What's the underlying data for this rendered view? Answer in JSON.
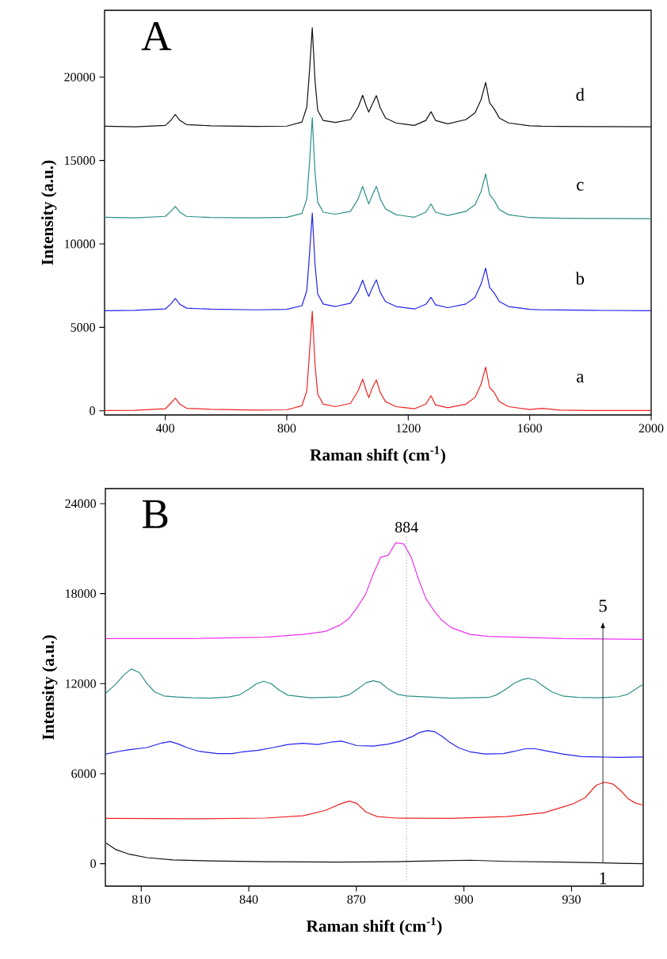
{
  "chart_data": [
    {
      "type": "line",
      "title": "A",
      "xlabel": "Raman shift (cm$^{-1}$)",
      "ylabel": "Intensity (a.u.)",
      "xlim": [
        200,
        2000
      ],
      "ylim": [
        -250,
        24000
      ],
      "xticks": [
        400,
        800,
        1200,
        1600,
        2000
      ],
      "yticks": [
        0,
        5000,
        10000,
        15000,
        20000
      ],
      "x": [
        200,
        300,
        400,
        418,
        433,
        448,
        470,
        550,
        700,
        800,
        850,
        866,
        875,
        884,
        893,
        902,
        920,
        960,
        1010,
        1035,
        1050,
        1062,
        1070,
        1080,
        1095,
        1108,
        1125,
        1160,
        1220,
        1258,
        1275,
        1290,
        1330,
        1390,
        1420,
        1440,
        1455,
        1468,
        1482,
        1500,
        1530,
        1600,
        1640,
        1700,
        1800,
        2000
      ],
      "series": [
        {
          "name": "a",
          "color": "#ee2222",
          "values": [
            20,
            30,
            120,
            450,
            750,
            400,
            150,
            90,
            40,
            60,
            300,
            1200,
            3500,
            5980,
            2800,
            1000,
            400,
            250,
            450,
            1200,
            1900,
            1200,
            790,
            1300,
            1850,
            1100,
            550,
            250,
            120,
            400,
            900,
            350,
            180,
            400,
            800,
            1600,
            2620,
            1400,
            1130,
            550,
            250,
            80,
            150,
            40,
            20,
            20
          ]
        },
        {
          "name": "b",
          "color": "#2222ee",
          "values": [
            6000,
            6020,
            6100,
            6400,
            6730,
            6380,
            6150,
            6090,
            6050,
            6080,
            6300,
            7200,
            9400,
            11850,
            8800,
            7000,
            6400,
            6250,
            6450,
            7150,
            7830,
            7200,
            6860,
            7300,
            7850,
            7100,
            6550,
            6250,
            6100,
            6380,
            6800,
            6350,
            6180,
            6400,
            6800,
            7600,
            8550,
            7400,
            7090,
            6550,
            6250,
            6080,
            6050,
            6040,
            6020,
            6000
          ]
        },
        {
          "name": "c",
          "color": "#2a8f86",
          "values": [
            11600,
            11560,
            11650,
            11950,
            12250,
            11900,
            11650,
            11580,
            11560,
            11600,
            11820,
            12700,
            14900,
            17560,
            14300,
            12500,
            11900,
            11780,
            11950,
            12700,
            13450,
            12800,
            12400,
            12850,
            13450,
            12700,
            12100,
            11750,
            11600,
            11900,
            12400,
            11900,
            11700,
            11950,
            12350,
            13150,
            14200,
            12950,
            12640,
            12050,
            11750,
            11580,
            11560,
            11540,
            11530,
            11510
          ]
        },
        {
          "name": "d",
          "color": "#111111",
          "values": [
            17050,
            17020,
            17100,
            17400,
            17760,
            17400,
            17150,
            17080,
            17040,
            17060,
            17300,
            18200,
            20400,
            22950,
            19800,
            18000,
            17400,
            17280,
            17450,
            18200,
            18910,
            18250,
            17900,
            18300,
            18890,
            18150,
            17550,
            17250,
            17100,
            17400,
            17920,
            17400,
            17200,
            17450,
            17850,
            18650,
            19680,
            18450,
            18120,
            17550,
            17250,
            17080,
            17050,
            17040,
            17030,
            17020
          ]
        }
      ]
    },
    {
      "type": "line",
      "title": "B",
      "xlabel": "Raman shift (cm$^{-1}$)",
      "ylabel": "Intensity (a.u.)",
      "xlim": [
        800,
        950
      ],
      "ylim": [
        -1500,
        25000
      ],
      "xticks": [
        810,
        840,
        870,
        900,
        930
      ],
      "yticks": [
        0,
        6000,
        12000,
        18000,
        24000
      ],
      "ref_lines": [
        {
          "axis": "x",
          "value": 884,
          "label": "884",
          "color": "#808080",
          "line_style": "dotted"
        }
      ],
      "annotations": [
        "1",
        "5"
      ],
      "series": [
        {
          "color": "#111111",
          "x": [
            800.2,
            802.8,
            806.4,
            811.6,
            818.8,
            829.2,
            844.7,
            865.4,
            881,
            891.3,
            901.7,
            912,
            927.5,
            943.1,
            950
          ],
          "values": [
            1380,
            950,
            650,
            400,
            250,
            180,
            130,
            100,
            130,
            180,
            230,
            150,
            100,
            30,
            0
          ]
        },
        {
          "color": "#ee2222",
          "x": [
            800.2,
            824,
            844.7,
            855.1,
            861.3,
            865.4,
            868,
            870.1,
            872.7,
            875.8,
            881,
            896.5,
            912,
            922.3,
            927.5,
            930.6,
            933.8,
            936.9,
            939.2,
            941.6,
            943.6,
            945.7,
            947.7,
            950
          ],
          "values": [
            3020,
            2990,
            3040,
            3190,
            3540,
            3970,
            4170,
            4020,
            3440,
            3140,
            3040,
            3020,
            3140,
            3390,
            3770,
            4000,
            4400,
            5230,
            5430,
            5300,
            4900,
            4350,
            4050,
            3900
          ]
        },
        {
          "color": "#2222ee",
          "x": [
            800.2,
            803.3,
            806.4,
            811.6,
            815.7,
            818.1,
            820.4,
            823,
            826.1,
            831.3,
            835.4,
            838.5,
            842.7,
            846.8,
            850.9,
            855.1,
            859.2,
            863.4,
            865.9,
            868.5,
            870.1,
            874.7,
            878.9,
            882,
            885.6,
            887.7,
            889.8,
            891.8,
            893.9,
            896,
            898.6,
            901.7,
            905.8,
            911,
            914.1,
            917.2,
            919.8,
            923.4,
            927.5,
            932.7,
            937.9,
            943.1,
            950
          ],
          "values": [
            7310,
            7460,
            7590,
            7740,
            8040,
            8140,
            7970,
            7710,
            7490,
            7340,
            7340,
            7460,
            7560,
            7740,
            7940,
            8020,
            7940,
            8120,
            8170,
            7990,
            7870,
            7840,
            7970,
            8140,
            8470,
            8750,
            8870,
            8800,
            8490,
            8090,
            7710,
            7460,
            7310,
            7340,
            7490,
            7660,
            7660,
            7490,
            7310,
            7140,
            7110,
            7090,
            7110
          ]
        },
        {
          "color": "#2a8f86",
          "x": [
            800.2,
            802.8,
            805.2,
            807.2,
            809.5,
            811.6,
            813.7,
            816.3,
            819.9,
            824,
            829.2,
            834.4,
            837.5,
            840.1,
            842.1,
            844.2,
            846.3,
            848.3,
            850.9,
            857.1,
            865.4,
            868,
            870.4,
            872.7,
            874.7,
            876.6,
            878.9,
            881.5,
            884.1,
            896.5,
            906.8,
            908.9,
            911.5,
            914.1,
            916.2,
            917.9,
            919.8,
            921.8,
            924.4,
            927.5,
            931.7,
            937.9,
            943.1,
            945.6,
            948.2,
            950
          ],
          "values": [
            11380,
            11940,
            12590,
            12970,
            12740,
            12010,
            11460,
            11180,
            11110,
            11060,
            11030,
            11110,
            11260,
            11640,
            11990,
            12160,
            11990,
            11590,
            11230,
            11060,
            11110,
            11260,
            11640,
            12060,
            12190,
            12090,
            11640,
            11280,
            11180,
            11030,
            11080,
            11230,
            11590,
            12040,
            12260,
            12360,
            12240,
            11890,
            11460,
            11180,
            11080,
            11060,
            11130,
            11280,
            11690,
            11960
          ]
        },
        {
          "color": "#ee33ee",
          "x": [
            800.2,
            824,
            844.7,
            855.1,
            861.3,
            865.4,
            868,
            870.1,
            872.5,
            874.7,
            876.8,
            878.9,
            881,
            883.2,
            885.3,
            887.4,
            889.4,
            891.5,
            893.6,
            896.5,
            901.7,
            906.8,
            917.2,
            927.5,
            950
          ],
          "values": [
            15000,
            15000,
            15100,
            15280,
            15480,
            15900,
            16360,
            17040,
            17920,
            19300,
            20430,
            20560,
            21390,
            21310,
            20430,
            18920,
            17670,
            16910,
            16280,
            15730,
            15280,
            15150,
            15080,
            15000,
            14950
          ]
        }
      ]
    }
  ]
}
